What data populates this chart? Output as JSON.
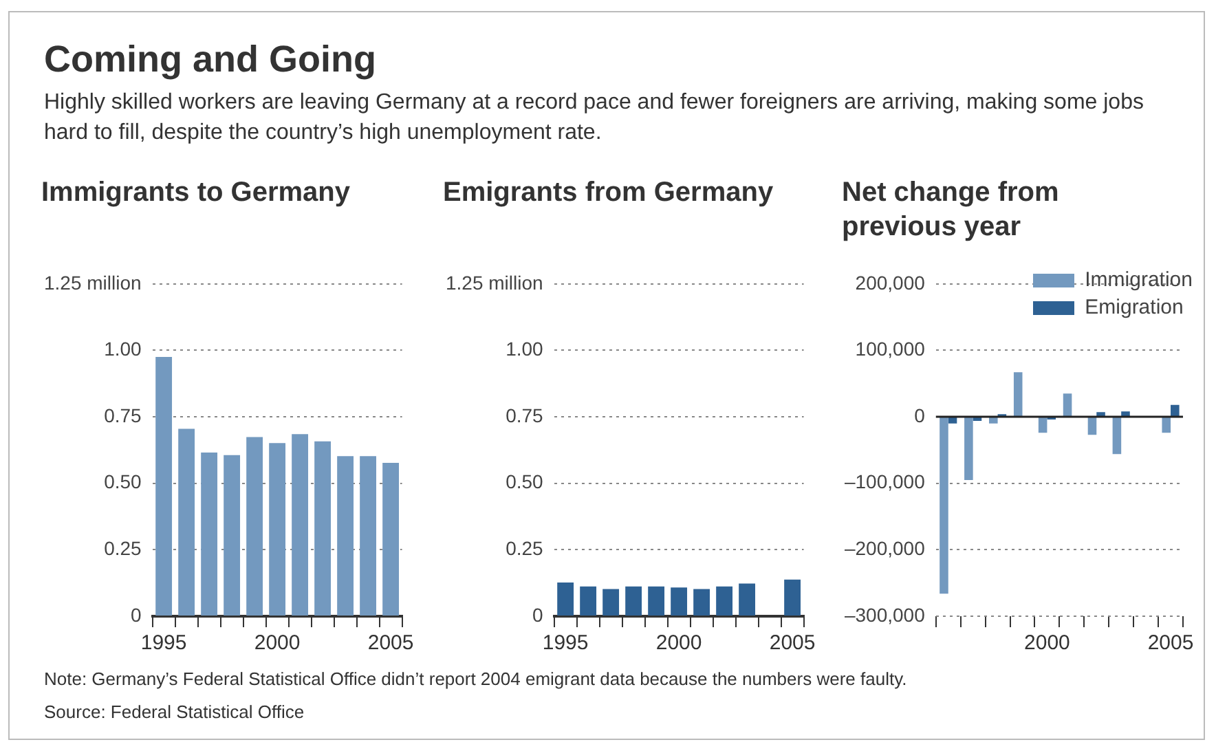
{
  "chart_data": [
    {
      "type": "other",
      "title": "Coming and Going",
      "subtitle": "Highly skilled workers are leaving Germany at a record pace and fewer foreigners are arriving, making some jobs hard to fill, despite the country’s high unemployment rate.",
      "annotations": [
        "Note: Germany’s Federal Statistical Office didn’t report 2004 emigrant data because the numbers were faulty.",
        "Source: Federal Statistical Office"
      ]
    },
    {
      "type": "bar",
      "title": "Immigrants to Germany",
      "categories": [
        "1995",
        null,
        null,
        null,
        null,
        "2000",
        null,
        null,
        null,
        null,
        "2005"
      ],
      "values": [
        0.975,
        0.705,
        0.616,
        0.606,
        0.674,
        0.651,
        0.685,
        0.658,
        0.602,
        0.602,
        0.577
      ],
      "color": "#7399bf",
      "ylim": [
        0,
        1.25
      ],
      "yticks": [
        0,
        0.25,
        {
          "value": 0.5,
          "label": "0.50"
        },
        0.75,
        {
          "value": 1,
          "label": "1.00"
        },
        {
          "value": 1.25,
          "label": "1.25 million"
        }
      ],
      "grid": "y"
    },
    {
      "type": "bar",
      "title": "Emigrants from Germany",
      "categories": [
        "1995",
        null,
        null,
        null,
        null,
        "2000",
        null,
        null,
        null,
        null,
        "2005"
      ],
      "values": [
        0.127,
        0.112,
        0.102,
        0.112,
        0.112,
        0.108,
        0.102,
        0.112,
        0.123,
        null,
        0.138
      ],
      "color": "#2e6193",
      "ylim": [
        0,
        1.25
      ],
      "yticks": [
        0,
        0.25,
        {
          "value": 0.5,
          "label": "0.50"
        },
        0.75,
        {
          "value": 1,
          "label": "1.00"
        },
        {
          "value": 1.25,
          "label": "1.25 million"
        }
      ],
      "grid": "y"
    },
    {
      "type": "bar",
      "title": "Net change from previous year",
      "categories": [
        null,
        null,
        null,
        null,
        "2000",
        null,
        null,
        null,
        null,
        "2005"
      ],
      "series": [
        {
          "name": "Immigration",
          "color": "#7399bf",
          "values": [
            -266000,
            -95000,
            -10000,
            67000,
            -24000,
            35000,
            -27000,
            -56000,
            0,
            -24000
          ]
        },
        {
          "name": "Emigration",
          "color": "#2e6193",
          "values": [
            -10000,
            -6000,
            4000,
            0,
            -4000,
            0,
            7000,
            8000,
            null,
            18000
          ]
        }
      ],
      "ylim": [
        -300000,
        200000
      ],
      "yticks": [
        {
          "value": -300000,
          "label": "–300,000"
        },
        {
          "value": -200000,
          "label": "–200,000"
        },
        {
          "value": -100000,
          "label": "–100,000"
        },
        0,
        {
          "value": 100000,
          "label": "100,000"
        },
        {
          "value": 200000,
          "label": "200,000"
        }
      ],
      "grid": "y",
      "legend": "top right",
      "ref_lines": [
        {
          "axis": "y",
          "value": 0,
          "color": "#222222"
        }
      ]
    }
  ]
}
